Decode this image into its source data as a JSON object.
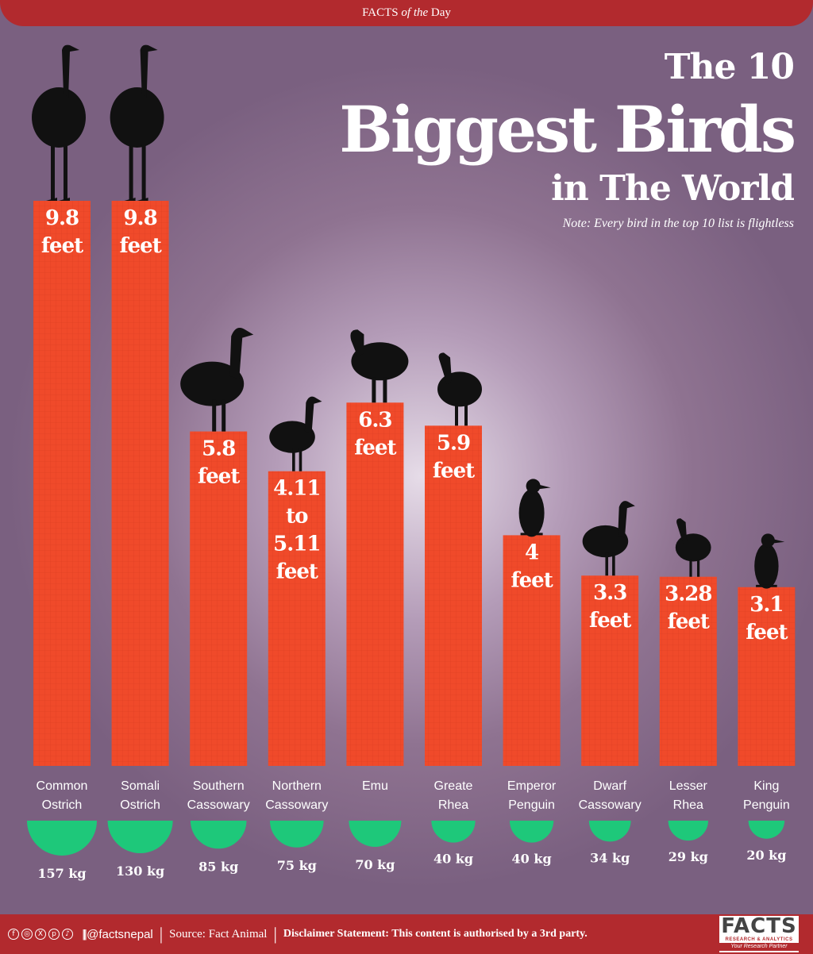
{
  "header": {
    "banner_prefix": "FACTS",
    "banner_of_the": "of the",
    "banner_suffix": "Day",
    "title_line1": "The 10",
    "title_line2": "Biggest Birds",
    "title_line3": "in The World",
    "note": "Note: Every bird in the top 10 list is flightless"
  },
  "colors": {
    "bar": "#f04a2a",
    "weight_marker": "#1ec87a",
    "banner": "#b22a2e",
    "silhouette": "#111111"
  },
  "chart_data": {
    "type": "bar",
    "categories": [
      "Common Ostrich",
      "Somali Ostrich",
      "Southern Cassowary",
      "Northern Cassowary",
      "Emu",
      "Greate Rhea",
      "Emperor Penguin",
      "Dwarf Cassowary",
      "Lesser Rhea",
      "King Penguin"
    ],
    "category_lines": [
      [
        "Common",
        "Ostrich"
      ],
      [
        "Somali",
        "Ostrich"
      ],
      [
        "Southern",
        "Cassowary"
      ],
      [
        "Northern",
        "Cassowary"
      ],
      [
        "Emu"
      ],
      [
        "Greate",
        "Rhea"
      ],
      [
        "Emperor",
        "Penguin"
      ],
      [
        "Dwarf",
        "Cassowary"
      ],
      [
        "Lesser",
        "Rhea"
      ],
      [
        "King",
        "Penguin"
      ]
    ],
    "height_feet": [
      9.8,
      9.8,
      5.8,
      5.11,
      6.3,
      5.9,
      4,
      3.3,
      3.28,
      3.1
    ],
    "height_labels": [
      [
        "9.8",
        "feet"
      ],
      [
        "9.8",
        "feet"
      ],
      [
        "5.8",
        "feet"
      ],
      [
        "4.11",
        "to",
        "5.11",
        "feet"
      ],
      [
        "6.3",
        "feet"
      ],
      [
        "5.9",
        "feet"
      ],
      [
        "4",
        "feet"
      ],
      [
        "3.3",
        "feet"
      ],
      [
        "3.28",
        "feet"
      ],
      [
        "3.1",
        "feet"
      ]
    ],
    "weight_kg": [
      157,
      130,
      85,
      75,
      70,
      40,
      40,
      34,
      29,
      20
    ],
    "weight_labels": [
      "157 kg",
      "130 kg",
      "85 kg",
      "75 kg",
      "70 kg",
      "40 kg",
      "40 kg",
      "34 kg",
      "29 kg",
      "20 kg"
    ],
    "silhouettes": [
      "ostrich-icon",
      "ostrich-icon",
      "cassowary-icon",
      "cassowary-icon",
      "emu-icon",
      "rhea-icon",
      "penguin-icon",
      "cassowary-icon",
      "rhea-icon",
      "penguin-icon"
    ]
  },
  "footer": {
    "social_icons": [
      "facebook-icon",
      "instagram-icon",
      "x-icon",
      "pinterest-icon",
      "tiktok-icon"
    ],
    "social_glyphs": [
      "f",
      "◎",
      "X",
      "p",
      "♪"
    ],
    "handle": "@factsnepal",
    "source": "Source: Fact Animal",
    "disclaimer": "Disclaimer Statement: This content is authorised by a 3rd party.",
    "logo_main": "FACTS",
    "logo_sub": "RESEARCH & ANALYTICS",
    "logo_tag": "Your Research Partner"
  }
}
